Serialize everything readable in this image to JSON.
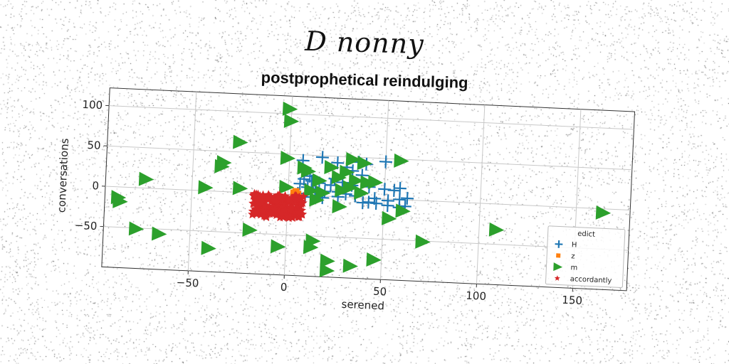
{
  "suptitle": "D nonny",
  "chart_data": {
    "type": "scatter",
    "title": "postprophetical reindulging",
    "xlabel": "serened",
    "ylabel": "conversations",
    "xlim": [
      -95,
      178
    ],
    "ylim": [
      -100,
      122
    ],
    "xticks": [
      -50,
      0,
      50,
      100,
      150
    ],
    "yticks": [
      -50,
      0,
      50,
      100
    ],
    "grid": true,
    "legend": {
      "title": "edict",
      "position": "lower-right"
    },
    "series": [
      {
        "name": "H",
        "marker": "plus",
        "color": "#1f77b4",
        "points": [
          [
            7,
            43
          ],
          [
            17,
            48
          ],
          [
            25,
            42
          ],
          [
            36,
            44
          ],
          [
            40,
            42
          ],
          [
            50,
            46
          ],
          [
            30,
            37
          ],
          [
            33,
            33
          ],
          [
            38,
            28
          ],
          [
            8,
            20
          ],
          [
            12,
            18
          ],
          [
            16,
            16
          ],
          [
            22,
            14
          ],
          [
            28,
            18
          ],
          [
            33,
            15
          ],
          [
            42,
            14
          ],
          [
            50,
            12
          ],
          [
            55,
            11
          ],
          [
            58,
            14
          ],
          [
            10,
            10
          ],
          [
            14,
            8
          ],
          [
            19,
            6
          ],
          [
            26,
            6
          ],
          [
            30,
            4
          ],
          [
            35,
            2
          ],
          [
            45,
            0
          ],
          [
            52,
            -2
          ],
          [
            58,
            0
          ],
          [
            62,
            2
          ],
          [
            5,
            2
          ],
          [
            9,
            -2
          ],
          [
            18,
            -2
          ],
          [
            26,
            0
          ],
          [
            42,
            -5
          ],
          [
            46,
            -6
          ],
          [
            52,
            -8
          ],
          [
            58,
            -10
          ],
          [
            61,
            -8
          ],
          [
            39,
            -6
          ],
          [
            11,
            24
          ],
          [
            6,
            14
          ],
          [
            24,
            22
          ]
        ]
      },
      {
        "name": "z",
        "marker": "square",
        "color": "#ff7f0e",
        "points": [
          [
            4,
            4
          ],
          [
            3,
            2
          ],
          [
            5,
            1
          ]
        ]
      },
      {
        "name": "m",
        "marker": "triangle-right",
        "color": "#2ca02c",
        "points": [
          [
            -1,
            106
          ],
          [
            0,
            91
          ],
          [
            -26,
            62
          ],
          [
            -34,
            36
          ],
          [
            -35,
            31
          ],
          [
            -1,
            45
          ],
          [
            8,
            34
          ],
          [
            10,
            30
          ],
          [
            33,
            47
          ],
          [
            39,
            43
          ],
          [
            58,
            48
          ],
          [
            22,
            36
          ],
          [
            30,
            31
          ],
          [
            26,
            24
          ],
          [
            35,
            21
          ],
          [
            41,
            19
          ],
          [
            16,
            19
          ],
          [
            18,
            4
          ],
          [
            32,
            12
          ],
          [
            28,
            8
          ],
          [
            38,
            6
          ],
          [
            12,
            6
          ],
          [
            -74,
            11
          ],
          [
            -43,
            4
          ],
          [
            -25,
            5
          ],
          [
            -1,
            9
          ],
          [
            -88,
            -13
          ],
          [
            -87,
            -18
          ],
          [
            -78,
            -51
          ],
          [
            -66,
            -56
          ],
          [
            -40,
            -71
          ],
          [
            -19,
            -46
          ],
          [
            -4,
            -65
          ],
          [
            14,
            -56
          ],
          [
            13,
            -64
          ],
          [
            22,
            -80
          ],
          [
            22,
            -92
          ],
          [
            34,
            -85
          ],
          [
            46,
            -76
          ],
          [
            53,
            -24
          ],
          [
            60,
            -14
          ],
          [
            71,
            -51
          ],
          [
            109,
            -32
          ],
          [
            164,
            -5
          ],
          [
            15,
            -5
          ],
          [
            27,
            -12
          ],
          [
            45,
            20
          ]
        ]
      },
      {
        "name": "accordantly",
        "marker": "star",
        "color": "#d62728",
        "cluster": {
          "x": [
            -18,
            8
          ],
          "y": [
            -29,
            -1
          ],
          "count": 220
        }
      }
    ]
  },
  "colors": {
    "grid": "#c8c8c8",
    "frame": "#333333",
    "noise": "#000000"
  }
}
